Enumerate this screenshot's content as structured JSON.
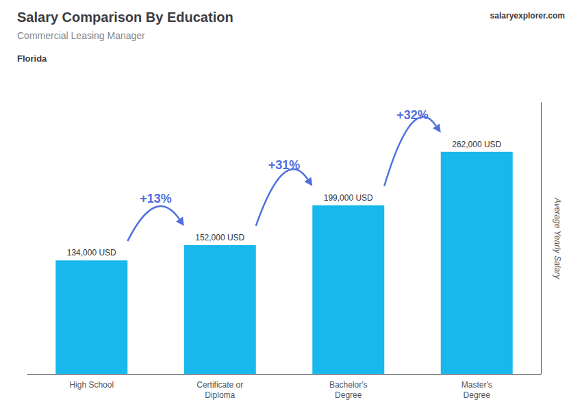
{
  "chart_data": {
    "type": "bar",
    "title": "Salary Comparison By Education",
    "subtitle": "Commercial Leasing Manager",
    "annotations": [
      "Florida",
      "salaryexplorer.com"
    ],
    "ylabel": "Average Yearly Salary",
    "categories": [
      "High School",
      "Certificate or\nDiploma",
      "Bachelor's\nDegree",
      "Master's\nDegree"
    ],
    "values": [
      134000,
      152000,
      199000,
      262000
    ],
    "value_labels": [
      "134,000 USD",
      "152,000 USD",
      "199,000 USD",
      "262,000 USD"
    ],
    "data_labels": true,
    "change_labels": [
      "+13%",
      "+31%",
      "+32%"
    ],
    "color": "#18B8EC",
    "ylim": [
      0,
      320000
    ],
    "grid": false,
    "tick_labels": "x"
  }
}
